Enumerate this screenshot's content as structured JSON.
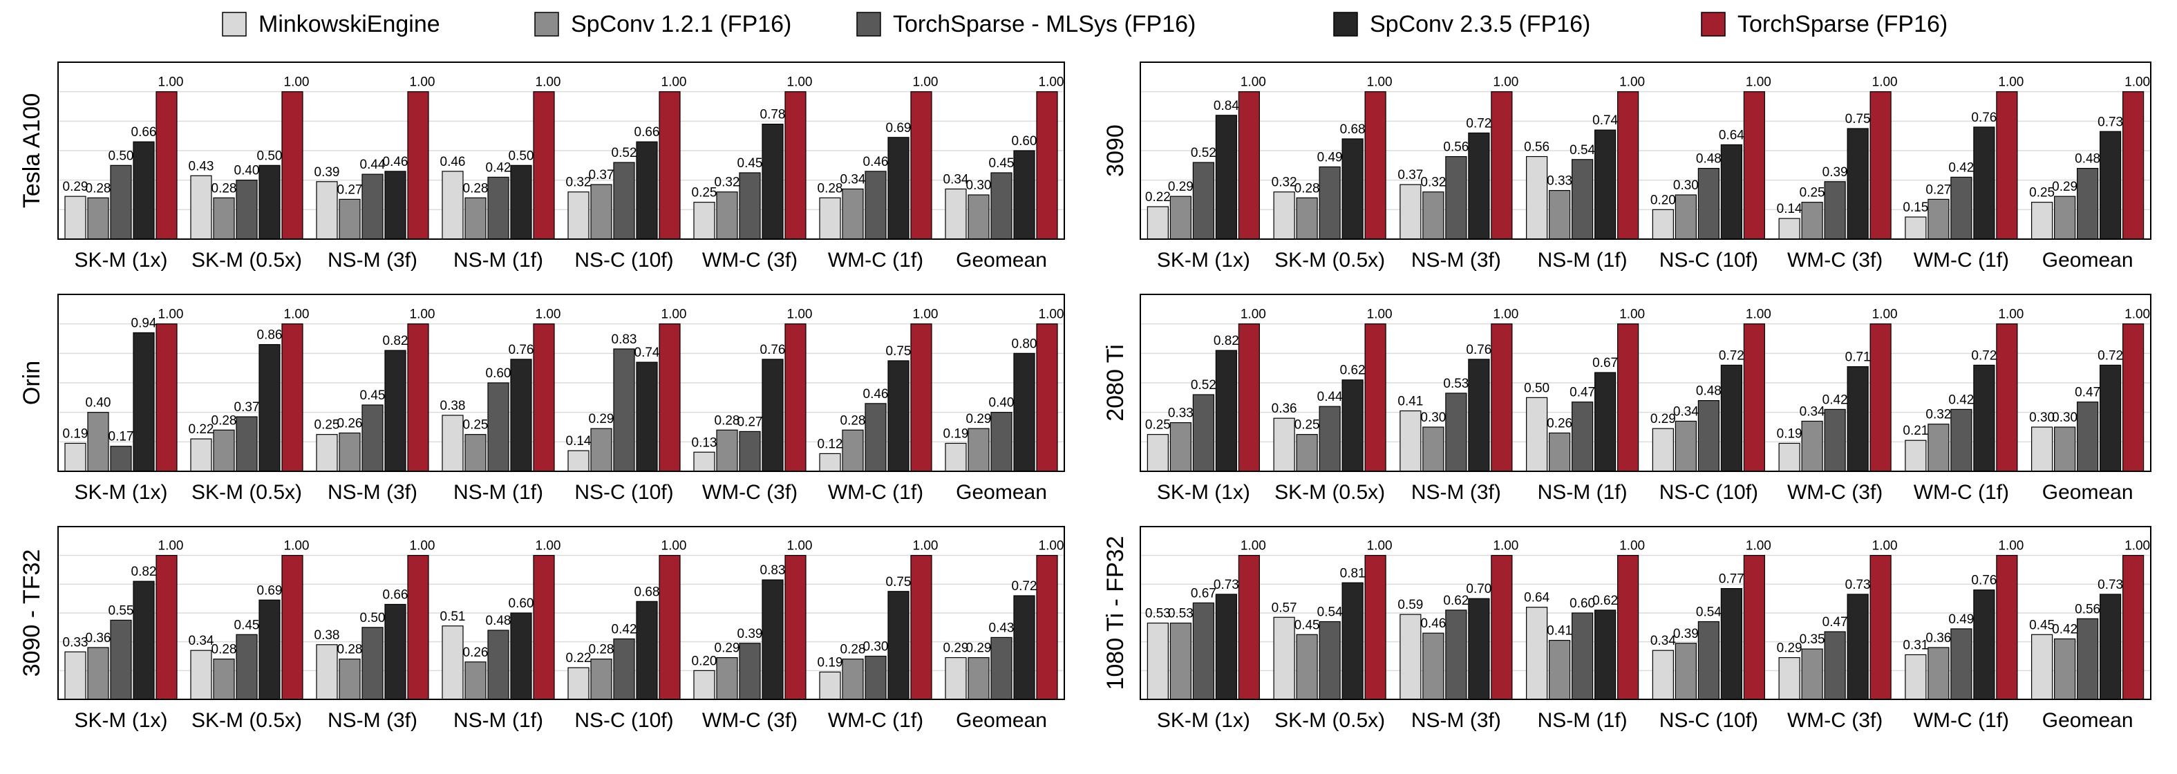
{
  "chart_data": [
    {
      "type": "bar",
      "ylabel": "Tesla A100",
      "categories": [
        "SK-M (1x)",
        "SK-M (0.5x)",
        "NS-M (3f)",
        "NS-M (1f)",
        "NS-C (10f)",
        "WM-C (3f)",
        "WM-C (1f)",
        "Geomean"
      ],
      "series": [
        {
          "name": "MinkowskiEngine",
          "color": "#d9d9d9",
          "values": [
            0.29,
            0.43,
            0.39,
            0.46,
            0.32,
            0.25,
            0.28,
            0.34
          ],
          "value_labels": [
            "0.29",
            "0.43",
            "0.39",
            "0.46",
            "0.32",
            "0.25",
            "0.28",
            "0.34"
          ]
        },
        {
          "name": "SpConv 1.2.1 (FP16)",
          "color": "#8c8c8c",
          "values": [
            0.28,
            0.28,
            0.27,
            0.28,
            0.37,
            0.32,
            0.34,
            0.3
          ],
          "value_labels": [
            "0.28",
            "0.28",
            "0.27",
            "0.28",
            "0.37",
            "0.32",
            "0.34",
            "0.30"
          ]
        },
        {
          "name": "TorchSparse - MLSys (FP16)",
          "color": "#595959",
          "values": [
            0.5,
            0.4,
            0.44,
            0.42,
            0.52,
            0.45,
            0.46,
            0.45
          ],
          "value_labels": [
            "0.50",
            "0.40",
            "0.44",
            "0.42",
            "0.52",
            "0.45",
            "0.46",
            "0.45"
          ]
        },
        {
          "name": "SpConv 2.3.5 (FP16)",
          "color": "#262626",
          "values": [
            0.66,
            0.5,
            0.46,
            0.5,
            0.66,
            0.78,
            0.69,
            0.6
          ],
          "value_labels": [
            "0.66",
            "0.50",
            "0.46",
            "0.50",
            "0.66",
            "0.78",
            "0.69",
            "0.60"
          ]
        },
        {
          "name": "TorchSparse (FP16)",
          "color": "#a21f2d",
          "values": [
            1,
            1,
            1,
            1,
            1,
            1,
            1,
            1
          ],
          "value_labels": [
            "1.00",
            "1.00",
            "1.00",
            "1.00",
            "1.00",
            "1.00",
            "1.00",
            "1.00"
          ]
        }
      ],
      "ylim": [
        0,
        1.2
      ],
      "yticks": [
        0.2,
        0.4,
        0.6,
        0.8,
        1
      ],
      "grid": true
    },
    {
      "type": "bar",
      "ylabel": "3090",
      "categories": [
        "SK-M (1x)",
        "SK-M (0.5x)",
        "NS-M (3f)",
        "NS-M (1f)",
        "NS-C (10f)",
        "WM-C (3f)",
        "WM-C (1f)",
        "Geomean"
      ],
      "series": [
        {
          "name": "MinkowskiEngine",
          "color": "#d9d9d9",
          "values": [
            0.22,
            0.32,
            0.37,
            0.56,
            0.2,
            0.14,
            0.15,
            0.25
          ],
          "value_labels": [
            "0.22",
            "0.32",
            "0.37",
            "0.56",
            "0.20",
            "0.14",
            "0.15",
            "0.25"
          ]
        },
        {
          "name": "SpConv 1.2.1 (FP16)",
          "color": "#8c8c8c",
          "values": [
            0.29,
            0.28,
            0.32,
            0.33,
            0.3,
            0.25,
            0.27,
            0.29
          ],
          "value_labels": [
            "0.29",
            "0.28",
            "0.32",
            "0.33",
            "0.30",
            "0.25",
            "0.27",
            "0.29"
          ]
        },
        {
          "name": "TorchSparse - MLSys (FP16)",
          "color": "#595959",
          "values": [
            0.52,
            0.49,
            0.56,
            0.54,
            0.48,
            0.39,
            0.42,
            0.48
          ],
          "value_labels": [
            "0.52",
            "0.49",
            "0.56",
            "0.54",
            "0.48",
            "0.39",
            "0.42",
            "0.48"
          ]
        },
        {
          "name": "SpConv 2.3.5 (FP16)",
          "color": "#262626",
          "values": [
            0.84,
            0.68,
            0.72,
            0.74,
            0.64,
            0.75,
            0.76,
            0.73
          ],
          "value_labels": [
            "0.84",
            "0.68",
            "0.72",
            "0.74",
            "0.64",
            "0.75",
            "0.76",
            "0.73"
          ]
        },
        {
          "name": "TorchSparse (FP16)",
          "color": "#a21f2d",
          "values": [
            1,
            1,
            1,
            1,
            1,
            1,
            1,
            1
          ],
          "value_labels": [
            "1.00",
            "1.00",
            "1.00",
            "1.00",
            "1.00",
            "1.00",
            "1.00",
            "1.00"
          ]
        }
      ],
      "ylim": [
        0,
        1.2
      ],
      "yticks": [
        0.2,
        0.4,
        0.6,
        0.8,
        1
      ],
      "grid": true
    },
    {
      "type": "bar",
      "ylabel": "Orin",
      "categories": [
        "SK-M (1x)",
        "SK-M (0.5x)",
        "NS-M (3f)",
        "NS-M (1f)",
        "NS-C (10f)",
        "WM-C (3f)",
        "WM-C (1f)",
        "Geomean"
      ],
      "series": [
        {
          "name": "MinkowskiEngine",
          "color": "#d9d9d9",
          "values": [
            0.19,
            0.22,
            0.25,
            0.38,
            0.14,
            0.13,
            0.12,
            0.19
          ],
          "value_labels": [
            "0.19",
            "0.22",
            "0.25",
            "0.38",
            "0.14",
            "0.13",
            "0.12",
            "0.19"
          ]
        },
        {
          "name": "SpConv 1.2.1 (FP16)",
          "color": "#8c8c8c",
          "values": [
            0.4,
            0.28,
            0.26,
            0.25,
            0.29,
            0.28,
            0.28,
            0.29
          ],
          "value_labels": [
            "0.40",
            "0.28",
            "0.26",
            "0.25",
            "0.29",
            "0.28",
            "0.28",
            "0.29"
          ]
        },
        {
          "name": "TorchSparse - MLSys (FP16)",
          "color": "#595959",
          "values": [
            0.17,
            0.37,
            0.45,
            0.6,
            0.83,
            0.27,
            0.46,
            0.4
          ],
          "value_labels": [
            "0.17",
            "0.37",
            "0.45",
            "0.60",
            "0.83",
            "0.27",
            "0.46",
            "0.40"
          ]
        },
        {
          "name": "SpConv 2.3.5 (FP16)",
          "color": "#262626",
          "values": [
            0.94,
            0.86,
            0.82,
            0.76,
            0.74,
            0.76,
            0.75,
            0.8
          ],
          "value_labels": [
            "0.94",
            "0.86",
            "0.82",
            "0.76",
            "0.74",
            "0.76",
            "0.75",
            "0.80"
          ]
        },
        {
          "name": "TorchSparse (FP16)",
          "color": "#a21f2d",
          "values": [
            1,
            1,
            1,
            1,
            1,
            1,
            1,
            1
          ],
          "value_labels": [
            "1.00",
            "1.00",
            "1.00",
            "1.00",
            "1.00",
            "1.00",
            "1.00",
            "1.00"
          ]
        }
      ],
      "ylim": [
        0,
        1.2
      ],
      "yticks": [
        0.2,
        0.4,
        0.6,
        0.8,
        1
      ],
      "grid": true
    },
    {
      "type": "bar",
      "ylabel": "2080 Ti",
      "categories": [
        "SK-M (1x)",
        "SK-M (0.5x)",
        "NS-M (3f)",
        "NS-M (1f)",
        "NS-C (10f)",
        "WM-C (3f)",
        "WM-C (1f)",
        "Geomean"
      ],
      "series": [
        {
          "name": "MinkowskiEngine",
          "color": "#d9d9d9",
          "values": [
            0.25,
            0.36,
            0.41,
            0.5,
            0.29,
            0.19,
            0.21,
            0.3
          ],
          "value_labels": [
            "0.25",
            "0.36",
            "0.41",
            "0.50",
            "0.29",
            "0.19",
            "0.21",
            "0.30"
          ]
        },
        {
          "name": "SpConv 1.2.1 (FP16)",
          "color": "#8c8c8c",
          "values": [
            0.33,
            0.25,
            0.3,
            0.26,
            0.34,
            0.34,
            0.32,
            0.3
          ],
          "value_labels": [
            "0.33",
            "0.25",
            "0.30",
            "0.26",
            "0.34",
            "0.34",
            "0.32",
            "0.30"
          ]
        },
        {
          "name": "TorchSparse - MLSys (FP16)",
          "color": "#595959",
          "values": [
            0.52,
            0.44,
            0.53,
            0.47,
            0.48,
            0.42,
            0.42,
            0.47
          ],
          "value_labels": [
            "0.52",
            "0.44",
            "0.53",
            "0.47",
            "0.48",
            "0.42",
            "0.42",
            "0.47"
          ]
        },
        {
          "name": "SpConv 2.3.5 (FP16)",
          "color": "#262626",
          "values": [
            0.82,
            0.62,
            0.76,
            0.67,
            0.72,
            0.71,
            0.72,
            0.72
          ],
          "value_labels": [
            "0.82",
            "0.62",
            "0.76",
            "0.67",
            "0.72",
            "0.71",
            "0.72",
            "0.72"
          ]
        },
        {
          "name": "TorchSparse (FP16)",
          "color": "#a21f2d",
          "values": [
            1,
            1,
            1,
            1,
            1,
            1,
            1,
            1
          ],
          "value_labels": [
            "1.00",
            "1.00",
            "1.00",
            "1.00",
            "1.00",
            "1.00",
            "1.00",
            "1.00"
          ]
        }
      ],
      "ylim": [
        0,
        1.2
      ],
      "yticks": [
        0.2,
        0.4,
        0.6,
        0.8,
        1
      ],
      "grid": true
    },
    {
      "type": "bar",
      "ylabel": "3090 - TF32",
      "categories": [
        "SK-M (1x)",
        "SK-M (0.5x)",
        "NS-M (3f)",
        "NS-M (1f)",
        "NS-C (10f)",
        "WM-C (3f)",
        "WM-C (1f)",
        "Geomean"
      ],
      "series": [
        {
          "name": "MinkowskiEngine",
          "color": "#d9d9d9",
          "values": [
            0.33,
            0.34,
            0.38,
            0.51,
            0.22,
            0.2,
            0.19,
            0.29
          ],
          "value_labels": [
            "0.33",
            "0.34",
            "0.38",
            "0.51",
            "0.22",
            "0.20",
            "0.19",
            "0.29"
          ]
        },
        {
          "name": "SpConv 1.2.1 (FP16)",
          "color": "#8c8c8c",
          "values": [
            0.36,
            0.28,
            0.28,
            0.26,
            0.28,
            0.29,
            0.28,
            0.29
          ],
          "value_labels": [
            "0.36",
            "0.28",
            "0.28",
            "0.26",
            "0.28",
            "0.29",
            "0.28",
            "0.29"
          ]
        },
        {
          "name": "TorchSparse - MLSys (FP16)",
          "color": "#595959",
          "values": [
            0.55,
            0.45,
            0.5,
            0.48,
            0.42,
            0.39,
            0.3,
            0.43
          ],
          "value_labels": [
            "0.55",
            "0.45",
            "0.50",
            "0.48",
            "0.42",
            "0.39",
            "0.30",
            "0.43"
          ]
        },
        {
          "name": "SpConv 2.3.5 (FP16)",
          "color": "#262626",
          "values": [
            0.82,
            0.69,
            0.66,
            0.6,
            0.68,
            0.83,
            0.75,
            0.72
          ],
          "value_labels": [
            "0.82",
            "0.69",
            "0.66",
            "0.60",
            "0.68",
            "0.83",
            "0.75",
            "0.72"
          ]
        },
        {
          "name": "TorchSparse (FP16)",
          "color": "#a21f2d",
          "values": [
            1,
            1,
            1,
            1,
            1,
            1,
            1,
            1
          ],
          "value_labels": [
            "1.00",
            "1.00",
            "1.00",
            "1.00",
            "1.00",
            "1.00",
            "1.00",
            "1.00"
          ]
        }
      ],
      "ylim": [
        0,
        1.2
      ],
      "yticks": [
        0.2,
        0.4,
        0.6,
        0.8,
        1
      ],
      "grid": true
    },
    {
      "type": "bar",
      "ylabel": "1080 Ti - FP32",
      "categories": [
        "SK-M (1x)",
        "SK-M (0.5x)",
        "NS-M (3f)",
        "NS-M (1f)",
        "NS-C (10f)",
        "WM-C (3f)",
        "WM-C (1f)",
        "Geomean"
      ],
      "series": [
        {
          "name": "MinkowskiEngine",
          "color": "#d9d9d9",
          "values": [
            0.53,
            0.57,
            0.59,
            0.64,
            0.34,
            0.29,
            0.31,
            0.45
          ],
          "value_labels": [
            "0.53",
            "0.57",
            "0.59",
            "0.64",
            "0.34",
            "0.29",
            "0.31",
            "0.45"
          ]
        },
        {
          "name": "SpConv 1.2.1 (FP16)",
          "color": "#8c8c8c",
          "values": [
            0.53,
            0.45,
            0.46,
            0.41,
            0.39,
            0.35,
            0.36,
            0.42
          ],
          "value_labels": [
            "0.53",
            "0.45",
            "0.46",
            "0.41",
            "0.39",
            "0.35",
            "0.36",
            "0.42"
          ]
        },
        {
          "name": "TorchSparse - MLSys (FP16)",
          "color": "#595959",
          "values": [
            0.67,
            0.54,
            0.62,
            0.6,
            0.54,
            0.47,
            0.49,
            0.56
          ],
          "value_labels": [
            "0.67",
            "0.54",
            "0.62",
            "0.60",
            "0.54",
            "0.47",
            "0.49",
            "0.56"
          ]
        },
        {
          "name": "SpConv 2.3.5 (FP16)",
          "color": "#262626",
          "values": [
            0.73,
            0.81,
            0.7,
            0.62,
            0.77,
            0.73,
            0.76,
            0.73
          ],
          "value_labels": [
            "0.73",
            "0.81",
            "0.70",
            "0.62",
            "0.77",
            "0.73",
            "0.76",
            "0.73"
          ]
        },
        {
          "name": "TorchSparse (FP16)",
          "color": "#a21f2d",
          "values": [
            1,
            1,
            1,
            1,
            1,
            1,
            1,
            1
          ],
          "value_labels": [
            "1.00",
            "1.00",
            "1.00",
            "1.00",
            "1.00",
            "1.00",
            "1.00",
            "1.00"
          ]
        }
      ],
      "ylim": [
        0,
        1.2
      ],
      "yticks": [
        0.2,
        0.4,
        0.6,
        0.8,
        1
      ],
      "grid": true
    }
  ]
}
